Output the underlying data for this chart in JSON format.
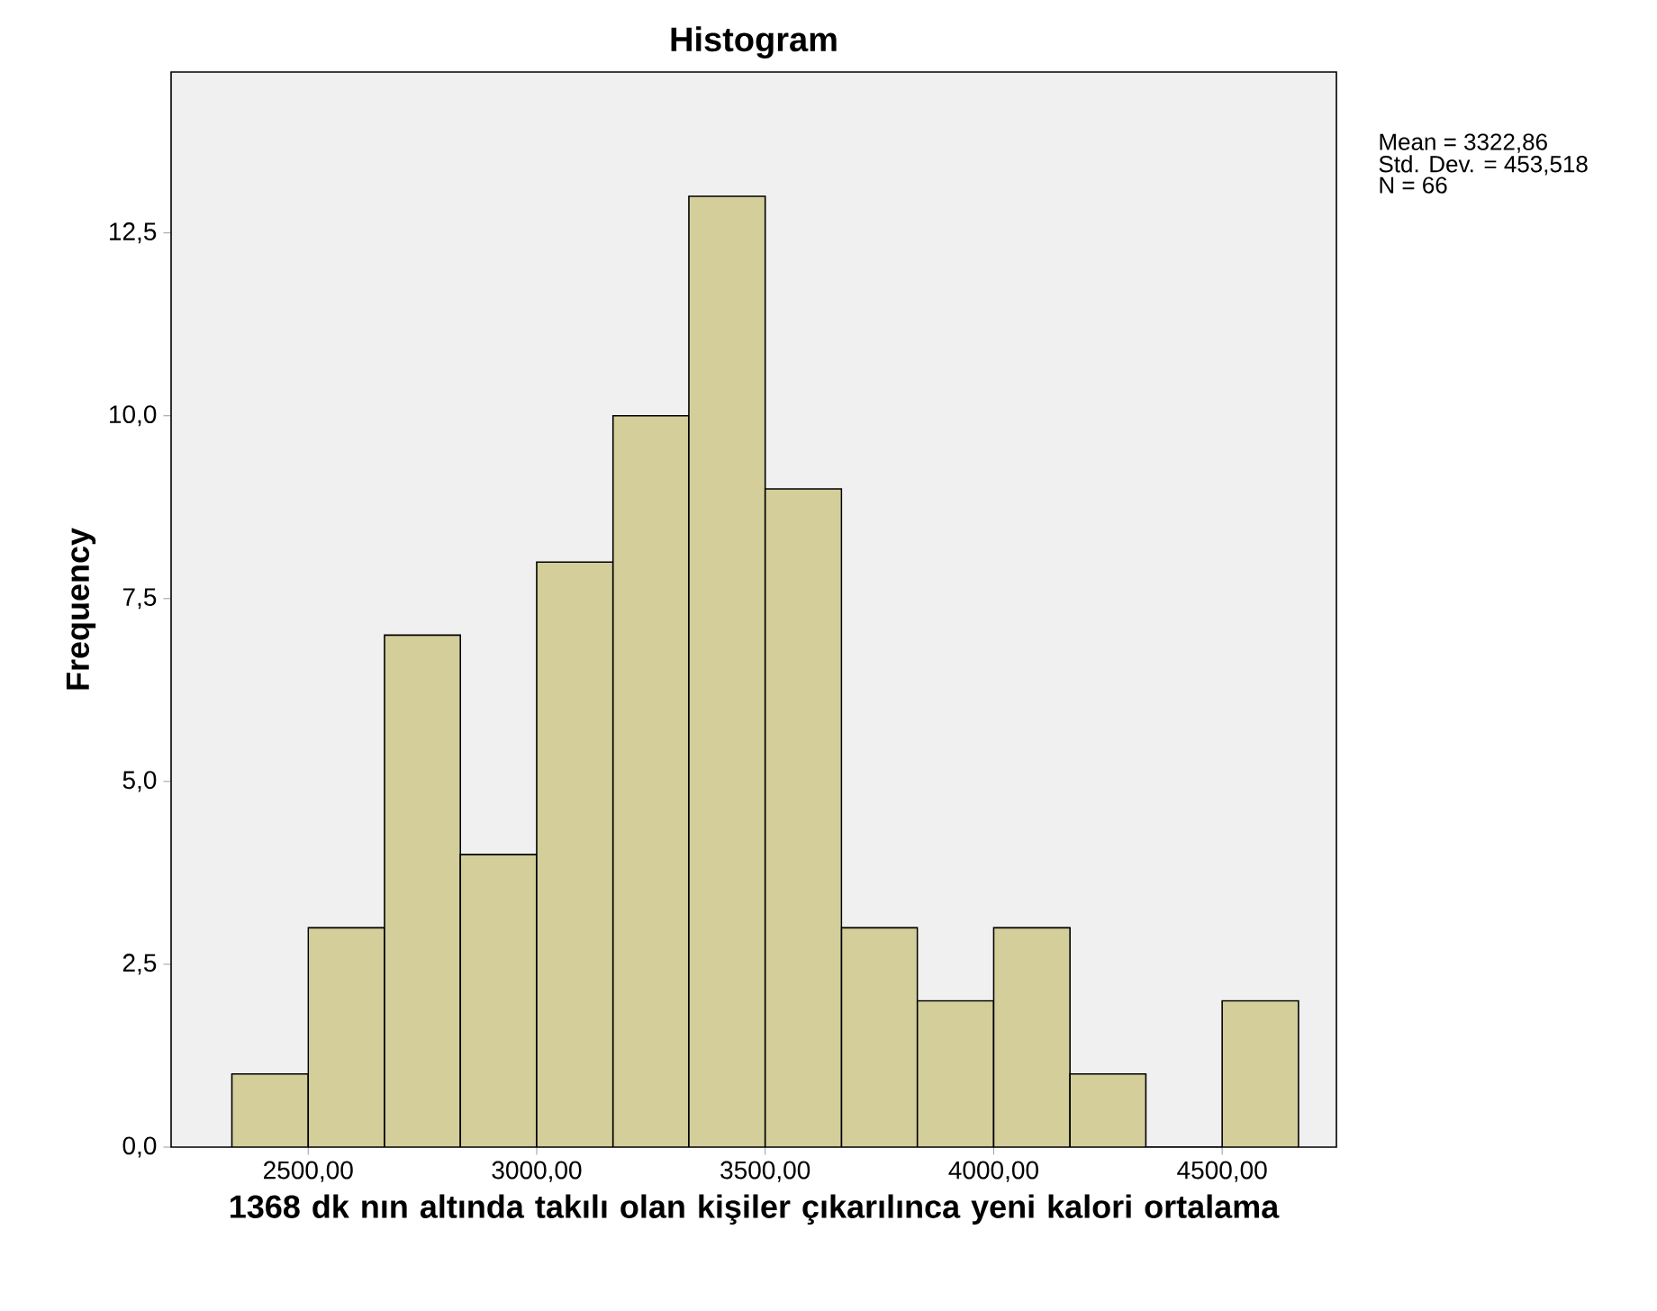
{
  "chart_data": {
    "type": "histogram",
    "title": "Histogram",
    "xlabel": "1368 dk nın altında takılı olan kişiler çıkarılınca yeni kalori ortalama",
    "ylabel": "Frequency",
    "bins": [
      2333,
      2500,
      2667,
      2833,
      3000,
      3167,
      3333,
      3500,
      3667,
      3833,
      4000,
      4167,
      4333,
      4500,
      4667
    ],
    "values": [
      1,
      3,
      7,
      4,
      8,
      10,
      13,
      9,
      3,
      2,
      3,
      1,
      0,
      2
    ],
    "color": "#d3ce9a",
    "xlim": [
      2200,
      4750
    ],
    "ylim": [
      0,
      14.7
    ],
    "xticks": [
      {
        "value": 2500,
        "label": "2500,00"
      },
      {
        "value": 3000,
        "label": "3000,00"
      },
      {
        "value": 3500,
        "label": "3500,00"
      },
      {
        "value": 4000,
        "label": "4000,00"
      },
      {
        "value": 4500,
        "label": "4500,00"
      }
    ],
    "yticks": [
      {
        "value": 0,
        "label": "0,0"
      },
      {
        "value": 2.5,
        "label": "2,5"
      },
      {
        "value": 5,
        "label": "5,0"
      },
      {
        "value": 7.5,
        "label": "7,5"
      },
      {
        "value": 10,
        "label": "10,0"
      },
      {
        "value": 12.5,
        "label": "12,5"
      }
    ],
    "annotations": [
      "Mean = 3322,86",
      "Std. Dev. = 453,518",
      "N = 66"
    ]
  }
}
